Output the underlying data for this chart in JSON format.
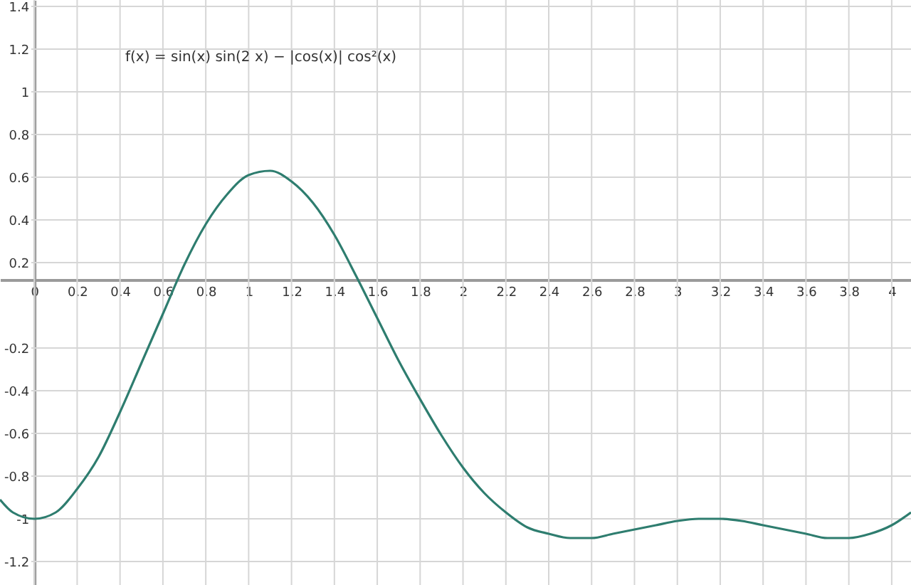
{
  "chart_data": {
    "type": "line",
    "annotations": [
      "f(x) = sin(x) sin(2 x) − |cos(x)| cos²(x)"
    ],
    "x": [
      -0.16,
      -0.1,
      0,
      0.1,
      0.2,
      0.3,
      0.4,
      0.5,
      0.6,
      0.7,
      0.8,
      0.9,
      1.0,
      1.1,
      1.2,
      1.3,
      1.4,
      1.5,
      1.6,
      1.7,
      1.8,
      1.9,
      2.0,
      2.1,
      2.2,
      2.3,
      2.4,
      2.5,
      2.6,
      2.7,
      2.8,
      2.9,
      3.0,
      3.1,
      3.2,
      3.3,
      3.4,
      3.5,
      3.6,
      3.7,
      3.8,
      3.9,
      4.0,
      4.09
    ],
    "series": [
      {
        "color": "#2e7d6f",
        "values": [
          -0.91,
          -0.97,
          -1.0,
          -0.97,
          -0.86,
          -0.71,
          -0.5,
          -0.27,
          -0.04,
          0.19,
          0.38,
          0.52,
          0.61,
          0.63,
          0.58,
          0.48,
          0.33,
          0.14,
          -0.06,
          -0.26,
          -0.44,
          -0.61,
          -0.76,
          -0.88,
          -0.97,
          -1.04,
          -1.07,
          -1.09,
          -1.09,
          -1.07,
          -1.05,
          -1.03,
          -1.01,
          -1.0,
          -1.0,
          -1.01,
          -1.03,
          -1.05,
          -1.07,
          -1.09,
          -1.09,
          -1.07,
          -1.03,
          -0.97
        ]
      }
    ],
    "xlim": [
      -0.16,
      4.09
    ],
    "ylim": [
      -1.31,
      1.43
    ],
    "xticks": [
      0,
      0.2,
      0.4,
      0.6,
      0.8,
      1,
      1.2,
      1.4,
      1.6,
      1.8,
      2,
      2.2,
      2.4,
      2.6,
      2.8,
      3,
      3.2,
      3.4,
      3.6,
      3.8,
      4
    ],
    "yticks": [
      -1.2,
      -1,
      -0.8,
      -0.6,
      -0.4,
      -0.2,
      0.2,
      0.4,
      0.6,
      0.8,
      1,
      1.2,
      1.4
    ],
    "grid": true,
    "marker": "none",
    "line_style": "solid"
  }
}
